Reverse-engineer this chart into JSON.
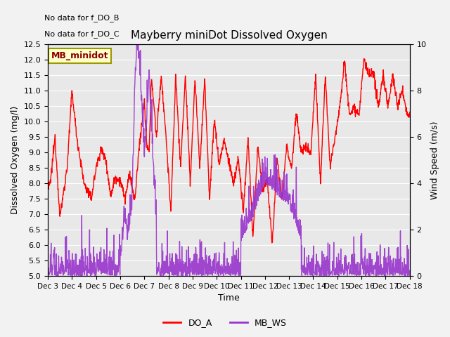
{
  "title": "Mayberry miniDot Dissolved Oxygen",
  "xlabel": "Time",
  "ylabel_left": "Dissolved Oxygen (mg/l)",
  "ylabel_right": "Wind Speed (m/s)",
  "ylim_left": [
    5.0,
    12.5
  ],
  "ylim_right": [
    0.0,
    10.0
  ],
  "xtick_labels": [
    "Dec 3",
    "Dec 4",
    "Dec 5",
    "Dec 6",
    "Dec 7",
    "Dec 8",
    "Dec 9",
    "Dec 10",
    "Dec 11",
    "Dec 12",
    "Dec 13",
    "Dec 14",
    "Dec 15",
    "Dec 16",
    "Dec 17",
    "Dec 18"
  ],
  "no_data_text1": "No data for f_DO_B",
  "no_data_text2": "No data for f_DO_C",
  "legend_box_text": "MB_minidot",
  "legend_box_facecolor": "#FFFFCC",
  "legend_box_edgecolor": "#999900",
  "legend_box_textcolor": "#8B0000",
  "do_color": "#FF0000",
  "ws_color": "#9933CC",
  "background_color": "#E8E8E8",
  "fig_background_color": "#F2F2F2",
  "grid_color": "#FFFFFF",
  "legend_do_label": "DO_A",
  "legend_ws_label": "MB_WS",
  "line_width": 1.0
}
